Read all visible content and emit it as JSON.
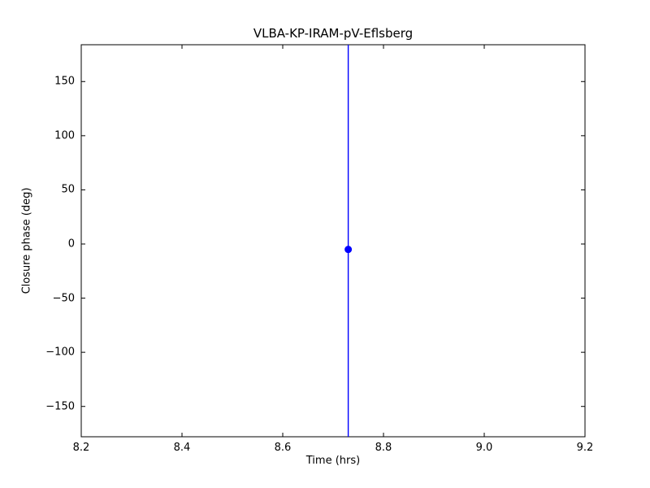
{
  "chart_data": {
    "type": "scatter",
    "title": "VLBA-KP-IRAM-pV-Eflsberg",
    "xlabel": "Time (hrs)",
    "ylabel": "Closure phase (deg)",
    "xlim": [
      8.2,
      9.2
    ],
    "ylim": [
      -178,
      184
    ],
    "xtick_values": [
      8.2,
      8.4,
      8.6,
      8.8,
      9.0,
      9.2
    ],
    "xtick_labels": [
      "8.2",
      "8.4",
      "8.6",
      "8.8",
      "9.0",
      "9.2"
    ],
    "ytick_values": [
      -150,
      -100,
      -50,
      0,
      50,
      100,
      150
    ],
    "ytick_labels": [
      "−150",
      "−100",
      "−50",
      "0",
      "50",
      "100",
      "150"
    ],
    "grid": false,
    "legend": false,
    "axis_color": "#000000",
    "series": [
      {
        "name": "closure phase",
        "color": "#0000ff",
        "marker": "circle",
        "points": [
          {
            "x": 8.73,
            "y": -5
          }
        ],
        "error_bars": [
          {
            "x": 8.73,
            "y": -5,
            "yerr_note": "vertical error bar spans entire visible y range (clipped at axis limits)"
          }
        ]
      }
    ]
  }
}
